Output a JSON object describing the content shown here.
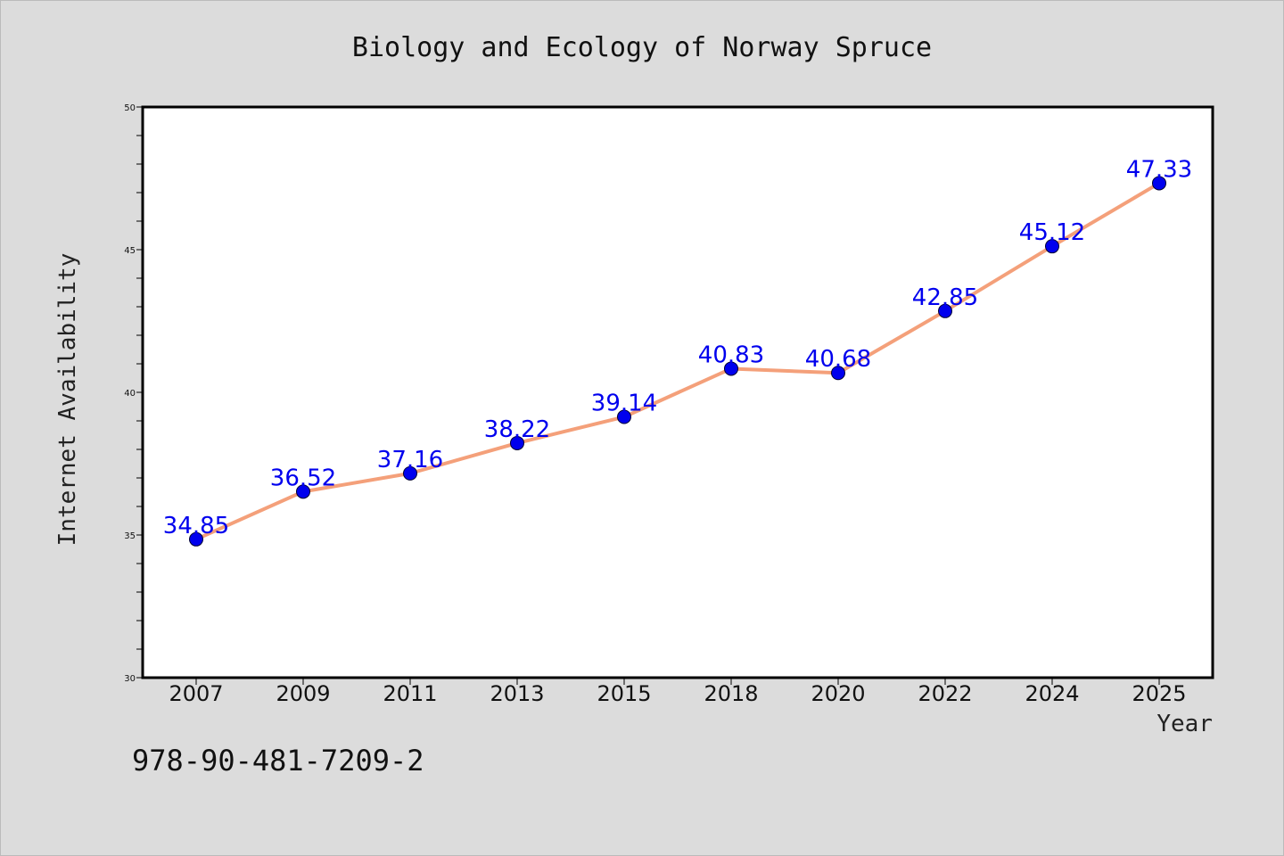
{
  "chart_data": {
    "type": "line",
    "title": "Biology and Ecology of Norway Spruce",
    "xlabel": "Year",
    "ylabel": "Internet Availability",
    "categories": [
      "2007",
      "2009",
      "2011",
      "2013",
      "2015",
      "2018",
      "2020",
      "2022",
      "2024",
      "2025"
    ],
    "series": [
      {
        "values": [
          34.85,
          36.52,
          37.16,
          38.22,
          39.14,
          40.83,
          40.68,
          42.85,
          45.12,
          47.33
        ],
        "line_color": "#f4a07a",
        "marker_color": "#0000ee",
        "label_color": "#0000ee"
      }
    ],
    "ylim": [
      30,
      50
    ],
    "y_ticks": [
      30,
      35,
      40,
      45,
      50
    ],
    "grid": false,
    "data_labels": true
  },
  "footer": {
    "isbn": "978-90-481-7209-2"
  }
}
